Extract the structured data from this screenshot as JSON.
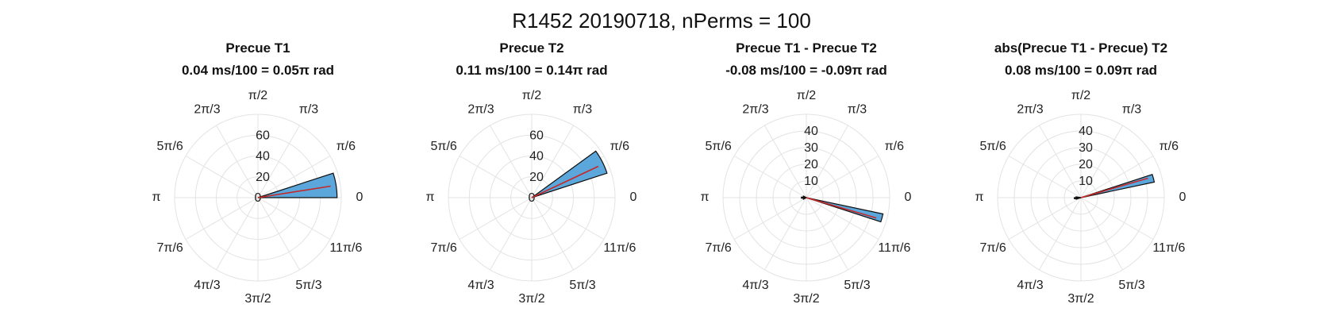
{
  "figure": {
    "title": "R1452 20190718, nPerms = 100"
  },
  "theta_tick_labels": [
    "0",
    "π/6",
    "π/3",
    "π/2",
    "2π/3",
    "5π/6",
    "π",
    "7π/6",
    "4π/3",
    "3π/2",
    "5π/3",
    "11π/6"
  ],
  "colors": {
    "bar_fill": "#5ba7dc",
    "bar_edge": "#111111",
    "mean_line": "#c62828",
    "grid": "#e3e3e3"
  },
  "chart_data": [
    {
      "type": "polar-histogram",
      "title": "Precue T1",
      "subtitle": "0.04 ms/100 = 0.05π rad",
      "rlim": [
        0,
        80
      ],
      "r_ticks": [
        0,
        20,
        40,
        60
      ],
      "bars": [
        {
          "theta_start_deg": 0,
          "theta_end_deg": 18,
          "r": 76
        }
      ],
      "mean_angle_pi": 0.05
    },
    {
      "type": "polar-histogram",
      "title": "Precue T2",
      "subtitle": "0.11 ms/100 = 0.14π rad",
      "rlim": [
        0,
        80
      ],
      "r_ticks": [
        0,
        20,
        40,
        60
      ],
      "bars": [
        {
          "theta_start_deg": 18,
          "theta_end_deg": 36,
          "r": 76
        }
      ],
      "mean_angle_pi": 0.14
    },
    {
      "type": "polar-histogram",
      "title": "Precue T1 - Precue T2",
      "subtitle": "-0.08 ms/100 = -0.09π rad",
      "rlim": [
        0,
        50
      ],
      "r_ticks": [
        10,
        20,
        30,
        40
      ],
      "bars": [
        {
          "theta_start_deg": -18,
          "theta_end_deg": -12,
          "r": 47
        },
        {
          "theta_start_deg": 150,
          "theta_end_deg": 162,
          "r": 2
        },
        {
          "theta_start_deg": 174,
          "theta_end_deg": 186,
          "r": 3
        },
        {
          "theta_start_deg": 200,
          "theta_end_deg": 210,
          "r": 2
        }
      ],
      "mean_angle_pi": -0.09
    },
    {
      "type": "polar-histogram",
      "title": "abs(Precue T1 - Precue) T2",
      "subtitle": "0.08 ms/100 = 0.09π rad",
      "rlim": [
        0,
        50
      ],
      "r_ticks": [
        10,
        20,
        30,
        40
      ],
      "bars": [
        {
          "theta_start_deg": 12,
          "theta_end_deg": 18,
          "r": 45
        },
        {
          "theta_start_deg": 170,
          "theta_end_deg": 180,
          "r": 3
        },
        {
          "theta_start_deg": 180,
          "theta_end_deg": 190,
          "r": 4
        },
        {
          "theta_start_deg": 190,
          "theta_end_deg": 198,
          "r": 3
        }
      ],
      "mean_angle_pi": 0.09
    }
  ]
}
